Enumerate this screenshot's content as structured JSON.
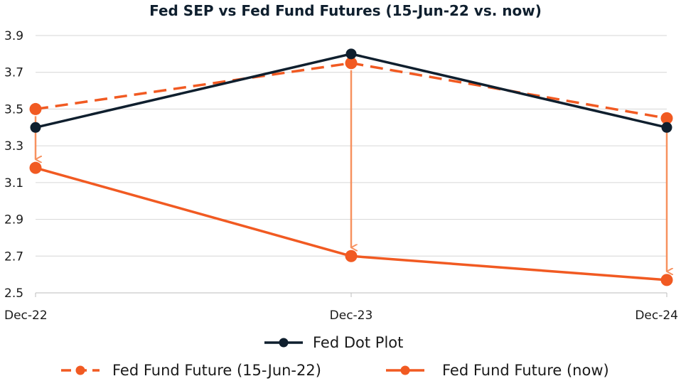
{
  "chart_data": {
    "type": "line",
    "title": "Fed SEP vs Fed Fund Futures (15-Jun-22 vs. now)",
    "categories": [
      "Dec-22",
      "Dec-23",
      "Dec-24"
    ],
    "ylim": [
      2.5,
      3.9
    ],
    "yticks": [
      "2.5",
      "2.7",
      "2.9",
      "3.1",
      "3.3",
      "3.5",
      "3.7",
      "3.9"
    ],
    "grid": true,
    "legend_position": "bottom",
    "series": [
      {
        "name": "Fed Dot Plot",
        "values": [
          3.4,
          3.8,
          3.4
        ],
        "color": "#0f1f2e",
        "style": "solid"
      },
      {
        "name": "Fed Fund Future (15-Jun-22)",
        "values": [
          3.5,
          3.75,
          3.45
        ],
        "color": "#f15a22",
        "style": "dashed"
      },
      {
        "name": "Fed Fund Future (now)",
        "values": [
          3.18,
          2.7,
          2.57
        ],
        "color": "#f15a22",
        "style": "solid"
      }
    ],
    "annotations": {
      "type": "arrows",
      "from_series": 1,
      "to_series": 2,
      "color": "#f7915f"
    }
  }
}
